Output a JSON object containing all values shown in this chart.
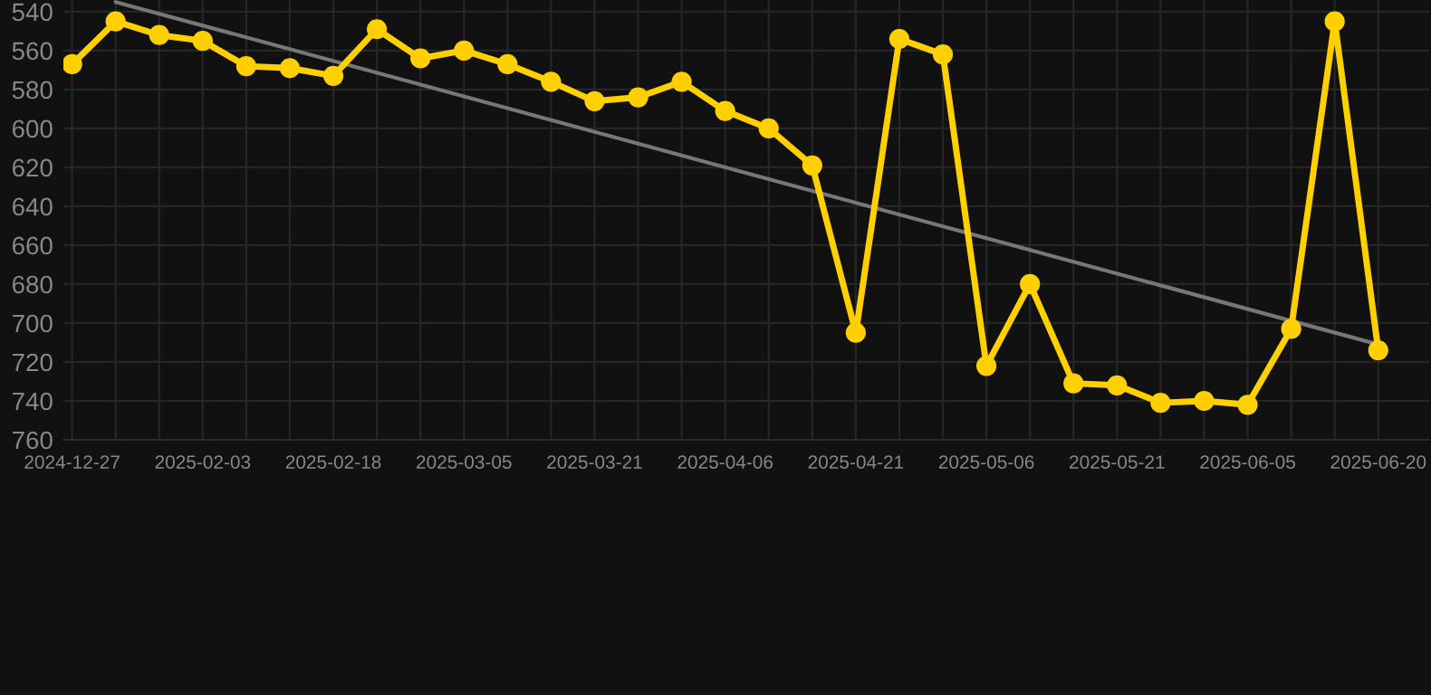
{
  "chart_data": {
    "type": "line",
    "categories": [
      "2024-12-27",
      null,
      null,
      "2025-02-03",
      null,
      null,
      "2025-02-18",
      null,
      null,
      "2025-03-05",
      null,
      null,
      "2025-03-21",
      null,
      null,
      "2025-04-06",
      null,
      null,
      "2025-04-21",
      null,
      null,
      "2025-05-06",
      null,
      null,
      "2025-05-21",
      null,
      null,
      "2025-06-05",
      null,
      null,
      "2025-06-20"
    ],
    "series": [
      {
        "color": "#ffd000",
        "marker": "circle",
        "values": [
          567,
          545,
          552,
          555,
          568,
          569,
          573,
          549,
          564,
          560,
          567,
          576,
          586,
          584,
          576,
          591,
          600,
          619,
          705,
          554,
          562,
          722,
          680,
          731,
          732,
          741,
          740,
          742,
          703,
          545,
          714
        ]
      },
      {
        "color": "#777777",
        "marker": "none",
        "values": [
          null,
          535,
          null,
          null,
          null,
          null,
          null,
          null,
          null,
          null,
          null,
          null,
          null,
          null,
          null,
          null,
          null,
          null,
          null,
          null,
          null,
          null,
          null,
          null,
          null,
          null,
          null,
          null,
          null,
          null,
          711
        ]
      }
    ],
    "ylim": [
      760,
      534
    ],
    "yticks": [
      540,
      560,
      580,
      600,
      620,
      640,
      660,
      680,
      700,
      720,
      740,
      760
    ],
    "grid": true,
    "line_style": "solid"
  }
}
